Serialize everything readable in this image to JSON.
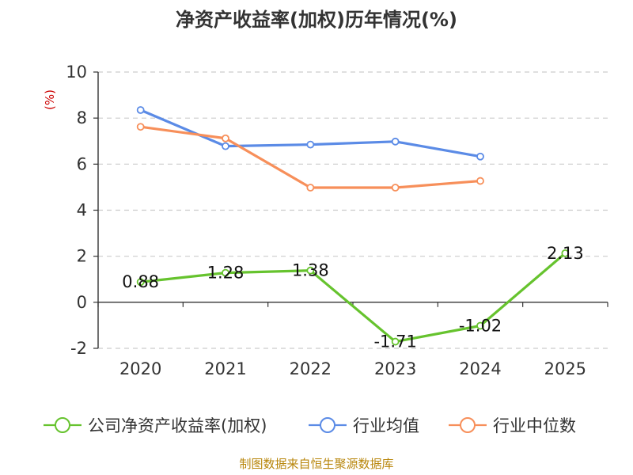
{
  "chart_data": {
    "type": "line",
    "title": "净资产收益率(加权)历年情况(%)",
    "ylabel": "(%)",
    "ylim": [
      -2,
      10
    ],
    "yticks": [
      -2,
      0,
      2,
      4,
      6,
      8,
      10
    ],
    "grid": true,
    "legend_position": "bottom",
    "categories": [
      "2020",
      "2021",
      "2022",
      "2023",
      "2024",
      "2025"
    ],
    "series": [
      {
        "name": "公司净资产收益率(加权)",
        "color": "#66c32e",
        "values": [
          0.88,
          1.28,
          1.38,
          -1.71,
          -1.02,
          2.13
        ],
        "labels": [
          "0.88",
          "1.28",
          "1.38",
          "-1.71",
          "-1.02",
          "2.13"
        ]
      },
      {
        "name": "行业均值",
        "color": "#5b8be6",
        "values": [
          8.35,
          6.78,
          6.85,
          6.98,
          6.33,
          null
        ]
      },
      {
        "name": "行业中位数",
        "color": "#f78f5a",
        "values": [
          7.62,
          7.12,
          4.98,
          4.98,
          5.27,
          null
        ]
      }
    ]
  },
  "source": "制图数据来自恒生聚源数据库"
}
